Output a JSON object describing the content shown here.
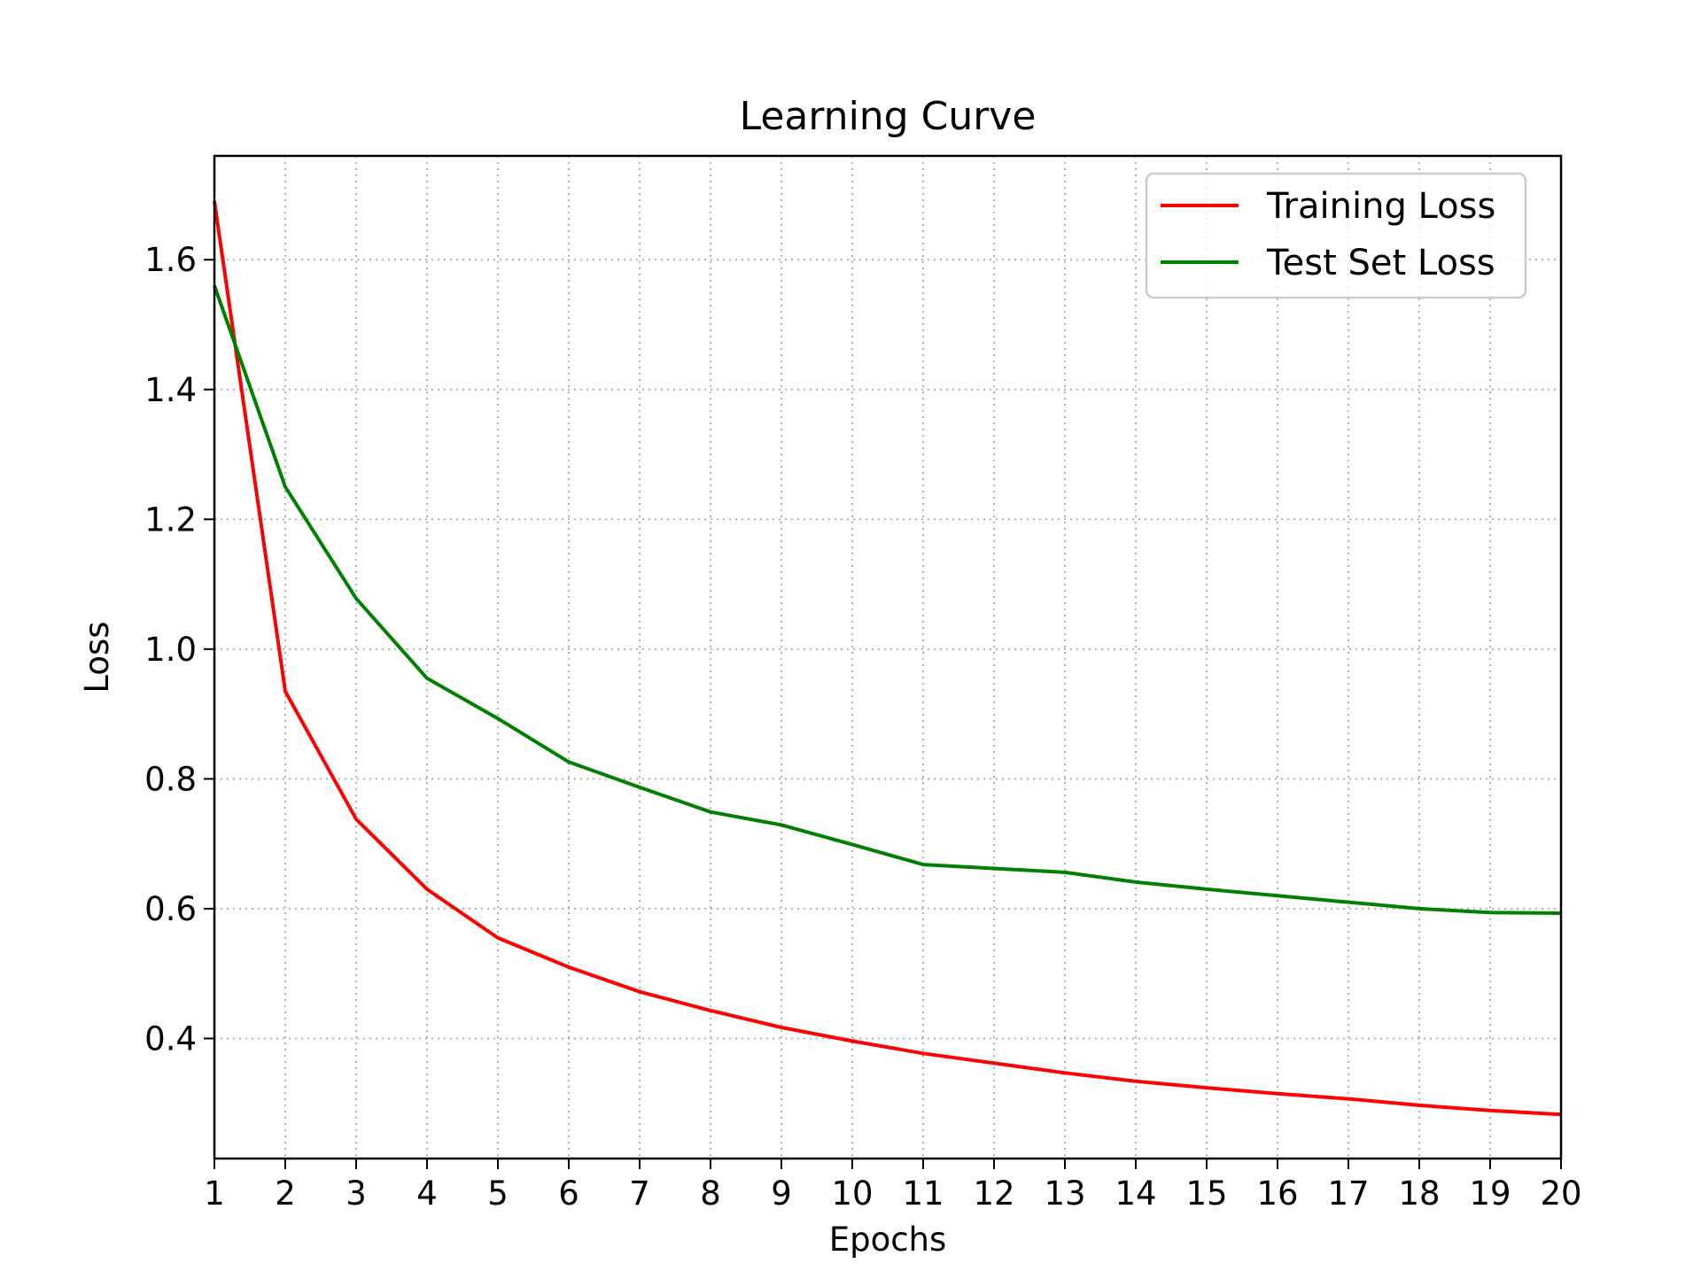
{
  "chart_data": {
    "type": "line",
    "title": "Learning Curve",
    "xlabel": "Epochs",
    "ylabel": "Loss",
    "x": [
      1,
      2,
      3,
      4,
      5,
      6,
      7,
      8,
      9,
      10,
      11,
      12,
      13,
      14,
      15,
      16,
      17,
      18,
      19,
      20
    ],
    "xlim": [
      1,
      20
    ],
    "ylim": [
      0.215,
      1.76
    ],
    "x_ticks": [
      "1",
      "2",
      "3",
      "4",
      "5",
      "6",
      "7",
      "8",
      "9",
      "10",
      "11",
      "12",
      "13",
      "14",
      "15",
      "16",
      "17",
      "18",
      "19",
      "20"
    ],
    "y_ticks": [
      {
        "value": 0.4,
        "label": "0.4"
      },
      {
        "value": 0.6,
        "label": "0.6"
      },
      {
        "value": 0.8,
        "label": "0.8"
      },
      {
        "value": 1.0,
        "label": "1.0"
      },
      {
        "value": 1.2,
        "label": "1.2"
      },
      {
        "value": 1.4,
        "label": "1.4"
      },
      {
        "value": 1.6,
        "label": "1.6"
      }
    ],
    "grid": true,
    "legend_position": "top-right",
    "series": [
      {
        "name": "Training Loss",
        "color": "#ff0000",
        "values": [
          1.69,
          0.935,
          0.738,
          0.63,
          0.555,
          0.51,
          0.472,
          0.443,
          0.417,
          0.396,
          0.377,
          0.362,
          0.347,
          0.334,
          0.324,
          0.315,
          0.307,
          0.297,
          0.289,
          0.283
        ]
      },
      {
        "name": "Test Set Loss",
        "color": "#008000",
        "values": [
          1.56,
          1.25,
          1.078,
          0.955,
          0.893,
          0.826,
          0.787,
          0.749,
          0.729,
          0.699,
          0.668,
          0.662,
          0.656,
          0.641,
          0.63,
          0.62,
          0.61,
          0.6,
          0.594,
          0.593
        ]
      }
    ]
  }
}
